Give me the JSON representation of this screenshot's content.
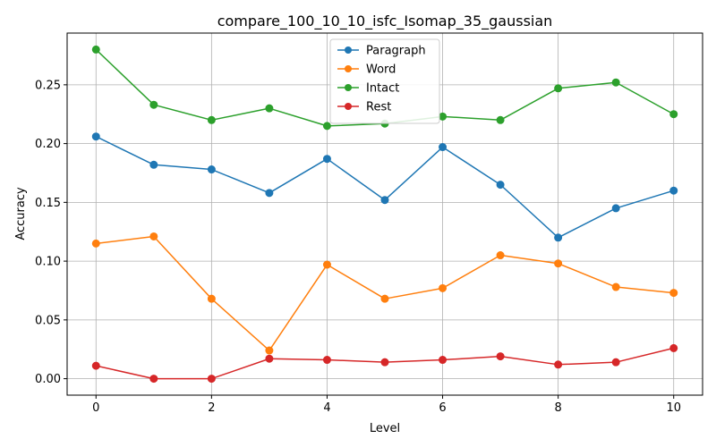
{
  "chart_data": {
    "type": "line",
    "title": "compare_100_10_10_isfc_Isomap_35_gaussian",
    "xlabel": "Level",
    "ylabel": "Accuracy",
    "x": [
      0,
      1,
      2,
      3,
      4,
      5,
      6,
      7,
      8,
      9,
      10
    ],
    "xlim": [
      -0.5,
      10.5
    ],
    "ylim": [
      -0.014,
      0.294
    ],
    "xticks": [
      0,
      2,
      4,
      6,
      8,
      10
    ],
    "xtick_labels": [
      "0",
      "2",
      "4",
      "6",
      "8",
      "10"
    ],
    "yticks": [
      0.0,
      0.05,
      0.1,
      0.15,
      0.2,
      0.25
    ],
    "ytick_labels": [
      "0.00",
      "0.05",
      "0.10",
      "0.15",
      "0.20",
      "0.25"
    ],
    "grid": true,
    "legend_position": "top-center",
    "marker": "circle",
    "series": [
      {
        "name": "Paragraph",
        "color": "#1f77b4",
        "values": [
          0.206,
          0.182,
          0.178,
          0.158,
          0.187,
          0.152,
          0.197,
          0.165,
          0.12,
          0.145,
          0.16
        ]
      },
      {
        "name": "Word",
        "color": "#ff7f0e",
        "values": [
          0.115,
          0.121,
          0.068,
          0.024,
          0.097,
          0.068,
          0.077,
          0.105,
          0.098,
          0.078,
          0.073
        ]
      },
      {
        "name": "Intact",
        "color": "#2ca02c",
        "values": [
          0.28,
          0.233,
          0.22,
          0.23,
          0.215,
          0.217,
          0.223,
          0.22,
          0.247,
          0.252,
          0.225
        ]
      },
      {
        "name": "Rest",
        "color": "#d62728",
        "values": [
          0.011,
          0.0,
          0.0,
          0.017,
          0.016,
          0.014,
          0.016,
          0.019,
          0.012,
          0.014,
          0.026
        ]
      }
    ]
  }
}
